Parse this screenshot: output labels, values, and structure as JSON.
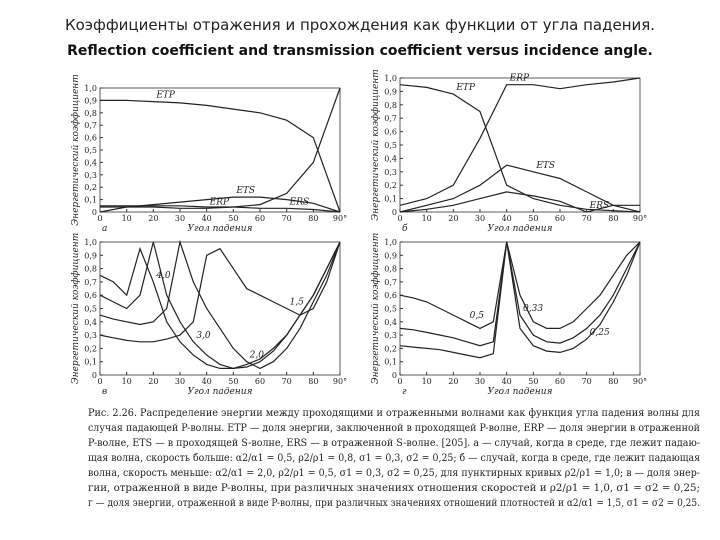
{
  "header": {
    "title_ru": "Коэффициенты отражения и прохождения как функции от угла падения.",
    "title_en": "Reflection coefficient and transmission coefficient  versus incidence angle."
  },
  "chart_data": [
    {
      "type": "line",
      "panel": "а",
      "xlabel": "Угол падения",
      "ylabel": "Энергетический коэффициент",
      "x": [
        0,
        10,
        20,
        30,
        40,
        50,
        60,
        70,
        80,
        90
      ],
      "xlim": [
        0,
        90
      ],
      "xticks": [
        0,
        10,
        20,
        30,
        40,
        50,
        60,
        70,
        80,
        {
          "value": 90,
          "label": "90°"
        }
      ],
      "ylim": [
        0,
        1
      ],
      "yticks": [
        0,
        {
          "value": 0.1,
          "label": "0,1"
        },
        {
          "value": 0.2,
          "label": "0,2"
        },
        {
          "value": 0.3,
          "label": "0,3"
        },
        {
          "value": 0.4,
          "label": "0,4"
        },
        {
          "value": 0.5,
          "label": "0,5"
        },
        {
          "value": 0.6,
          "label": "0,6"
        },
        {
          "value": 0.7,
          "label": "0,7"
        },
        {
          "value": 0.8,
          "label": "0,8"
        },
        {
          "value": 0.9,
          "label": "0,9"
        },
        {
          "value": 1,
          "label": "1,0"
        }
      ],
      "series": [
        {
          "name": "ETP",
          "color": "#222",
          "values": [
            0.9,
            0.9,
            0.89,
            0.88,
            0.86,
            0.83,
            0.8,
            0.74,
            0.6,
            0
          ]
        },
        {
          "name": "ERP",
          "color": "#222",
          "values": [
            0.04,
            0.04,
            0.04,
            0.03,
            0.03,
            0.04,
            0.06,
            0.15,
            0.4,
            1.0
          ]
        },
        {
          "name": "ETS",
          "color": "#222",
          "values": [
            0,
            0.04,
            0.06,
            0.08,
            0.1,
            0.12,
            0.12,
            0.1,
            0.07,
            0
          ]
        },
        {
          "name": "ERS",
          "color": "#222",
          "values": [
            0.05,
            0.05,
            0.05,
            0.05,
            0.04,
            0.04,
            0.03,
            0.03,
            0.02,
            0
          ]
        }
      ]
    },
    {
      "type": "line",
      "panel": "б",
      "xlabel": "Угол падения",
      "ylabel": "Энергетический коэффициент",
      "x": [
        0,
        10,
        20,
        30,
        40,
        50,
        60,
        70,
        80,
        90
      ],
      "xlim": [
        0,
        90
      ],
      "xticks": [
        0,
        10,
        20,
        30,
        40,
        50,
        60,
        70,
        80,
        {
          "value": 90,
          "label": "90°"
        }
      ],
      "ylim": [
        0,
        1
      ],
      "yticks": [
        0,
        {
          "value": 0.1,
          "label": "0,1"
        },
        {
          "value": 0.2,
          "label": "0,2"
        },
        {
          "value": 0.3,
          "label": "0,3"
        },
        {
          "value": 0.4,
          "label": "0,4"
        },
        {
          "value": 0.5,
          "label": "0,5"
        },
        {
          "value": 0.6,
          "label": "0,6"
        },
        {
          "value": 0.7,
          "label": "0,7"
        },
        {
          "value": 0.8,
          "label": "0,8"
        },
        {
          "value": 0.9,
          "label": "0,9"
        },
        {
          "value": 1,
          "label": "1,0"
        }
      ],
      "series": [
        {
          "name": "ETP",
          "color": "#222",
          "values": [
            0.95,
            0.93,
            0.88,
            0.75,
            0.2,
            0.1,
            0.05,
            0.02,
            0.01,
            0
          ]
        },
        {
          "name": "ERP",
          "color": "#222",
          "values": [
            0.05,
            0.1,
            0.2,
            0.55,
            0.95,
            0.95,
            0.92,
            0.95,
            0.97,
            1.0
          ]
        },
        {
          "name": "ETS",
          "color": "#222",
          "values": [
            0,
            0.05,
            0.1,
            0.2,
            0.35,
            0.3,
            0.25,
            0.15,
            0.05,
            0
          ]
        },
        {
          "name": "ERS",
          "color": "#222",
          "values": [
            0,
            0.02,
            0.05,
            0.1,
            0.15,
            0.12,
            0.08,
            0,
            0.05,
            0.05
          ]
        }
      ]
    },
    {
      "type": "line",
      "panel": "в",
      "xlabel": "Угол падения",
      "ylabel": "Энергетический коэффициент",
      "x": [
        0,
        5,
        10,
        15,
        20,
        25,
        30,
        35,
        40,
        45,
        50,
        55,
        60,
        65,
        70,
        75,
        80,
        85,
        90
      ],
      "xlim": [
        0,
        90
      ],
      "xticks": [
        0,
        10,
        20,
        30,
        40,
        50,
        60,
        70,
        80,
        {
          "value": 90,
          "label": "90°"
        }
      ],
      "ylim": [
        0,
        1
      ],
      "yticks": [
        0,
        {
          "value": 0.1,
          "label": "0,1"
        },
        {
          "value": 0.2,
          "label": "0,2"
        },
        {
          "value": 0.3,
          "label": "0,3"
        },
        {
          "value": 0.4,
          "label": "0,4"
        },
        {
          "value": 0.5,
          "label": "0,5"
        },
        {
          "value": 0.6,
          "label": "0,6"
        },
        {
          "value": 0.7,
          "label": "0,7"
        },
        {
          "value": 0.8,
          "label": "0,8"
        },
        {
          "value": 0.9,
          "label": "0,9"
        },
        {
          "value": 1,
          "label": "1,0"
        }
      ],
      "series": [
        {
          "name": "4,0",
          "color": "#222",
          "values": [
            0.75,
            0.7,
            0.6,
            0.95,
            0.7,
            0.4,
            0.25,
            0.15,
            0.08,
            0.05,
            0.05,
            0.08,
            0.12,
            0.2,
            0.3,
            0.45,
            0.6,
            0.8,
            1.0
          ]
        },
        {
          "name": "3,0",
          "color": "#222",
          "values": [
            0.6,
            0.55,
            0.5,
            0.6,
            1.0,
            0.6,
            0.4,
            0.25,
            0.15,
            0.08,
            0.05,
            0.06,
            0.1,
            0.18,
            0.3,
            0.45,
            0.6,
            0.8,
            1.0
          ]
        },
        {
          "name": "2,0",
          "color": "#222",
          "values": [
            0.45,
            0.42,
            0.4,
            0.38,
            0.4,
            0.5,
            1.0,
            0.7,
            0.5,
            0.35,
            0.2,
            0.1,
            0.05,
            0.1,
            0.2,
            0.35,
            0.55,
            0.75,
            1.0
          ]
        },
        {
          "name": "1,5",
          "color": "#222",
          "values": [
            0.3,
            0.28,
            0.26,
            0.25,
            0.25,
            0.27,
            0.3,
            0.4,
            0.9,
            0.95,
            0.8,
            0.65,
            0.6,
            0.55,
            0.5,
            0.45,
            0.5,
            0.7,
            1.0
          ]
        }
      ]
    },
    {
      "type": "line",
      "panel": "г",
      "xlabel": "Угол падения",
      "ylabel": "Энергетический коэффициент",
      "x": [
        0,
        5,
        10,
        15,
        20,
        25,
        30,
        35,
        40,
        45,
        50,
        55,
        60,
        65,
        70,
        75,
        80,
        85,
        90
      ],
      "xlim": [
        0,
        90
      ],
      "xticks": [
        0,
        10,
        20,
        30,
        40,
        50,
        60,
        70,
        80,
        {
          "value": 90,
          "label": "90°"
        }
      ],
      "ylim": [
        0,
        1
      ],
      "yticks": [
        0,
        {
          "value": 0.1,
          "label": "0,1"
        },
        {
          "value": 0.2,
          "label": "0,2"
        },
        {
          "value": 0.3,
          "label": "0,3"
        },
        {
          "value": 0.4,
          "label": "0,4"
        },
        {
          "value": 0.5,
          "label": "0,5"
        },
        {
          "value": 0.6,
          "label": "0,6"
        },
        {
          "value": 0.7,
          "label": "0,7"
        },
        {
          "value": 0.8,
          "label": "0,8"
        },
        {
          "value": 0.9,
          "label": "0,9"
        },
        {
          "value": 1,
          "label": "1,0"
        }
      ],
      "series": [
        {
          "name": "0,5",
          "color": "#222",
          "values": [
            0.6,
            0.58,
            0.55,
            0.5,
            0.45,
            0.4,
            0.35,
            0.4,
            1.0,
            0.6,
            0.4,
            0.35,
            0.35,
            0.4,
            0.5,
            0.6,
            0.75,
            0.9,
            1.0
          ]
        },
        {
          "name": "0,33",
          "color": "#222",
          "values": [
            0.35,
            0.34,
            0.32,
            0.3,
            0.28,
            0.25,
            0.22,
            0.25,
            1.0,
            0.45,
            0.3,
            0.25,
            0.24,
            0.28,
            0.35,
            0.45,
            0.6,
            0.8,
            1.0
          ]
        },
        {
          "name": "0,25",
          "color": "#222",
          "values": [
            0.22,
            0.21,
            0.2,
            0.19,
            0.17,
            0.15,
            0.13,
            0.16,
            1.0,
            0.35,
            0.22,
            0.18,
            0.17,
            0.2,
            0.27,
            0.38,
            0.55,
            0.75,
            1.0
          ]
        }
      ]
    }
  ],
  "caption": {
    "lines": [
      "Рис. 2.26. Распределение энергии между проходящими и отраженными волнами как функция угла падения волны для",
      "случая падающей P-волны. ETP — доля энергии, заключенной в проходящей P-волне, ERP — доля энергии в отраженной",
      "P-волне, ETS — в проходящей S-волне, ERS — в отраженной S-волне. [205]. а — случай, когда в среде, где лежит падаю-",
      "щая волна, скорость больше: α2/α1 = 0,5, ρ2/ρ1 = 0,8, σ1 = 0,3, σ2 = 0,25; б — случай, когда в среде, где лежит падающая",
      "волна, скорость меньше: α2/α1 = 2,0, ρ2/ρ1 = 0,5, σ1 = 0,3, σ2 = 0,25, для пунктирных кривых ρ2/ρ1 = 1,0; в — доля энер-",
      "гии, отраженной в виде P-волны, при различных значениях отношения скоростей и ρ2/ρ1 = 1,0, σ1 = σ2 = 0,25;",
      "г — доля энергии, отраженной в виде P-волны, при различных значениях отношений плотностей и α2/α1 = 1,5, σ1 = σ2 = 0,25."
    ]
  }
}
